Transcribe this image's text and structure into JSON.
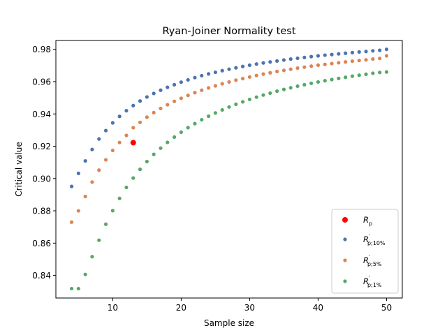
{
  "chart_data": {
    "type": "scatter",
    "title": "Ryan-Joiner Normality test",
    "xlabel": "Sample size",
    "ylabel": "Critical value",
    "xlim": [
      1.7,
      52.3
    ],
    "ylim": [
      0.826,
      0.9855
    ],
    "grid": false,
    "legend_position": "bottom-right",
    "x_ticks": [
      "10",
      "20",
      "30",
      "40",
      "50"
    ],
    "y_ticks": [
      "0.84",
      "0.86",
      "0.88",
      "0.90",
      "0.92",
      "0.94",
      "0.96",
      "0.98"
    ],
    "series": [
      {
        "name": "R_p",
        "legend_main": "R",
        "legend_sub": "p",
        "legend_prime": "",
        "color": "#ff0000",
        "marker_size": "large",
        "x": [
          13
        ],
        "y": [
          0.9222
        ]
      },
      {
        "name": "R'_{p;10%}",
        "legend_main": "R",
        "legend_sub": "p;10%",
        "legend_prime": "′",
        "color": "#4c72b0",
        "marker_size": "small",
        "x": [
          4,
          5,
          6,
          7,
          8,
          9,
          10,
          11,
          12,
          13,
          14,
          15,
          16,
          17,
          18,
          19,
          20,
          21,
          22,
          23,
          24,
          25,
          26,
          27,
          28,
          29,
          30,
          31,
          32,
          33,
          34,
          35,
          36,
          37,
          38,
          39,
          40,
          41,
          42,
          43,
          44,
          45,
          46,
          47,
          48,
          49,
          50
        ],
        "y": [
          0.8951,
          0.9032,
          0.9109,
          0.918,
          0.9245,
          0.9297,
          0.9345,
          0.9385,
          0.942,
          0.9452,
          0.948,
          0.9505,
          0.9527,
          0.9547,
          0.9565,
          0.9581,
          0.9597,
          0.9611,
          0.9625,
          0.9637,
          0.9648,
          0.9658,
          0.9668,
          0.9677,
          0.9686,
          0.9694,
          0.9702,
          0.9709,
          0.9716,
          0.9722,
          0.9728,
          0.9734,
          0.974,
          0.9745,
          0.975,
          0.9755,
          0.976,
          0.9764,
          0.9768,
          0.9772,
          0.9776,
          0.978,
          0.9784,
          0.9787,
          0.9791,
          0.9794,
          0.98
        ]
      },
      {
        "name": "R'_{p;5%}",
        "legend_main": "R",
        "legend_sub": "p;5%",
        "legend_prime": "′",
        "color": "#dd8452",
        "marker_size": "small",
        "x": [
          4,
          5,
          6,
          7,
          8,
          9,
          10,
          11,
          12,
          13,
          14,
          15,
          16,
          17,
          18,
          19,
          20,
          21,
          22,
          23,
          24,
          25,
          26,
          27,
          28,
          29,
          30,
          31,
          32,
          33,
          34,
          35,
          36,
          37,
          38,
          39,
          40,
          41,
          42,
          43,
          44,
          45,
          46,
          47,
          48,
          49,
          50
        ],
        "y": [
          0.873,
          0.88,
          0.8889,
          0.8978,
          0.9052,
          0.9116,
          0.9174,
          0.9223,
          0.9267,
          0.9315,
          0.9348,
          0.938,
          0.9408,
          0.9434,
          0.9457,
          0.9478,
          0.9497,
          0.9515,
          0.9532,
          0.9547,
          0.9561,
          0.9574,
          0.9587,
          0.9598,
          0.9609,
          0.9619,
          0.9629,
          0.9638,
          0.9647,
          0.9655,
          0.9663,
          0.967,
          0.9677,
          0.9684,
          0.969,
          0.9696,
          0.9702,
          0.9707,
          0.9712,
          0.9717,
          0.9722,
          0.9727,
          0.9731,
          0.9735,
          0.974,
          0.9744,
          0.976
        ]
      },
      {
        "name": "R'_{p;1%}",
        "legend_main": "R",
        "legend_sub": "p;1%",
        "legend_prime": "′",
        "color": "#55a868",
        "marker_size": "small",
        "x": [
          4,
          5,
          6,
          7,
          8,
          9,
          10,
          11,
          12,
          13,
          14,
          15,
          16,
          17,
          18,
          19,
          20,
          21,
          22,
          23,
          24,
          25,
          26,
          27,
          28,
          29,
          30,
          31,
          32,
          33,
          34,
          35,
          36,
          37,
          38,
          39,
          40,
          41,
          42,
          43,
          44,
          45,
          46,
          47,
          48,
          49,
          50
        ],
        "y": [
          0.8318,
          0.8318,
          0.8406,
          0.8516,
          0.8618,
          0.8717,
          0.8801,
          0.8877,
          0.8945,
          0.9003,
          0.9057,
          0.9105,
          0.915,
          0.9188,
          0.9224,
          0.9257,
          0.9287,
          0.9315,
          0.934,
          0.9364,
          0.9386,
          0.9406,
          0.9425,
          0.9443,
          0.946,
          0.9475,
          0.949,
          0.9504,
          0.9517,
          0.9529,
          0.9541,
          0.9552,
          0.9562,
          0.9572,
          0.9581,
          0.959,
          0.9598,
          0.9606,
          0.9613,
          0.962,
          0.9627,
          0.9634,
          0.964,
          0.9646,
          0.9652,
          0.9657,
          0.966
        ]
      }
    ]
  }
}
